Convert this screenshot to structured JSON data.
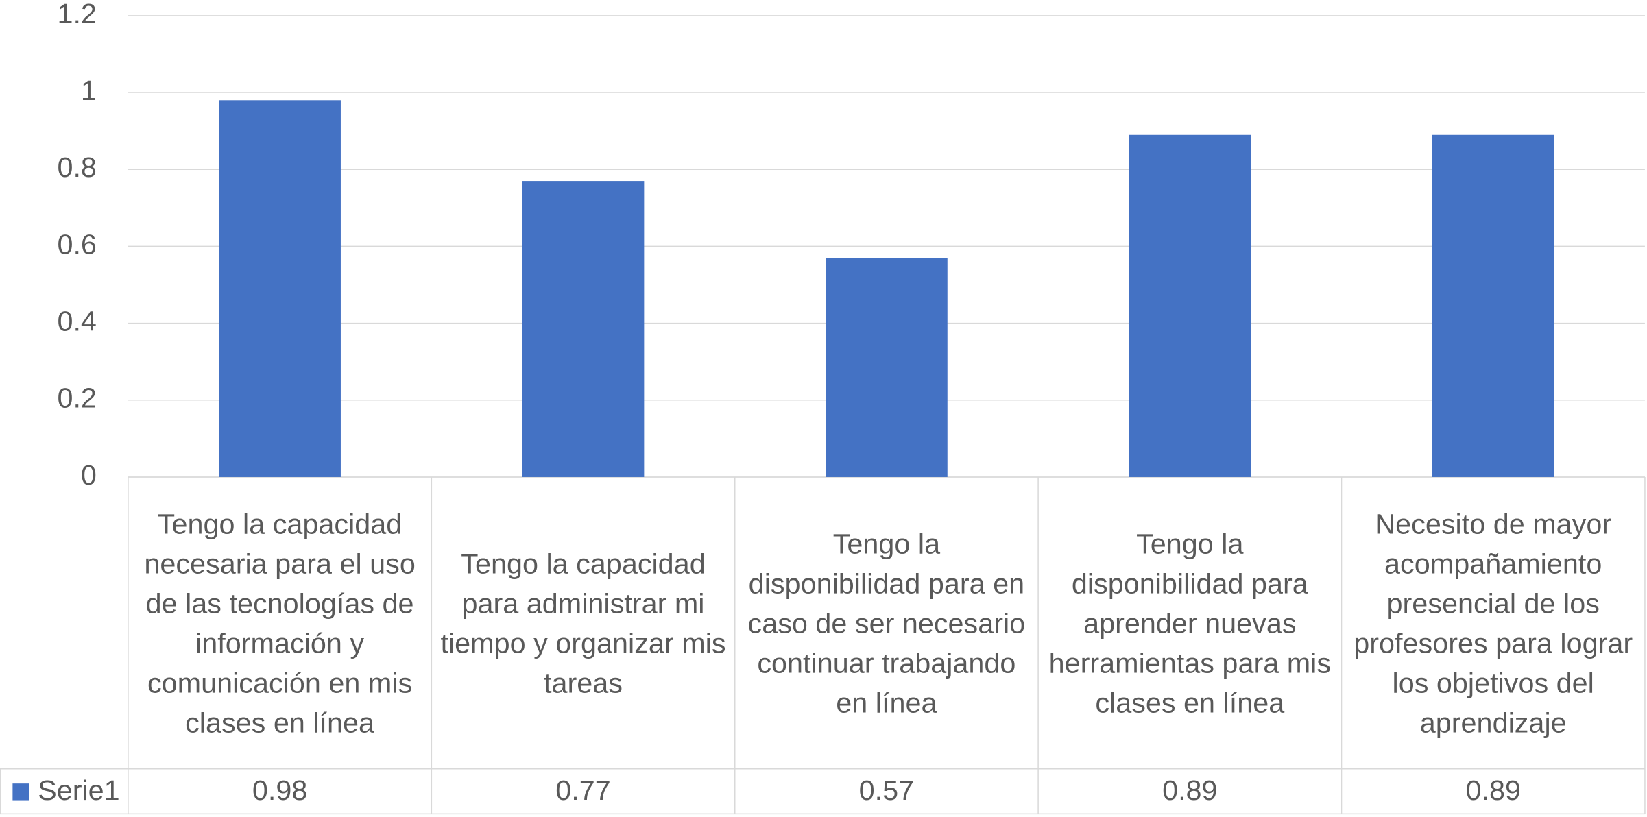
{
  "chart_data": {
    "type": "bar",
    "categories": [
      "Tengo la capacidad necesaria para el uso de las tecnologías de información y comunicación en mis clases en línea",
      "Tengo la capacidad para administrar mi tiempo y organizar mis tareas",
      "Tengo la disponibilidad para en caso de ser necesario continuar trabajando en línea",
      "Tengo la disponibilidad para aprender nuevas herramientas para mis clases en línea",
      "Necesito de mayor acompañamiento presencial de los profesores para lograr los objetivos del aprendizaje"
    ],
    "series": [
      {
        "name": "Serie1",
        "color": "#4472c4",
        "values": [
          0.98,
          0.77,
          0.57,
          0.89,
          0.89
        ]
      }
    ],
    "ylim": [
      0,
      1.2
    ],
    "yticks": [
      0,
      0.2,
      0.4,
      0.6,
      0.8,
      1,
      1.2
    ],
    "grid": true,
    "data_table": true
  }
}
